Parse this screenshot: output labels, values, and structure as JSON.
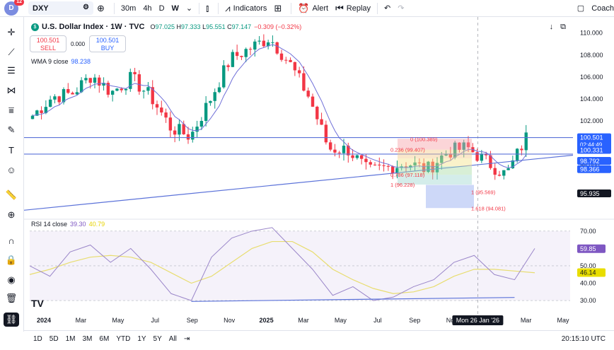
{
  "topbar": {
    "avatar_letter": "D",
    "avatar_badge": "12",
    "symbol": "DXY",
    "intervals": [
      "30m",
      "4h",
      "D",
      "W"
    ],
    "active_interval": "W",
    "indicators_label": "Indicators",
    "alert_label": "Alert",
    "replay_label": "Replay",
    "coach_label": "Coach"
  },
  "legend": {
    "title": "U.S. Dollar Index · 1W · TVC",
    "open_label": "O",
    "open": "97.025",
    "high_label": "H",
    "high": "97.333",
    "low_label": "L",
    "low": "95.551",
    "close_label": "C",
    "close": "97.147",
    "change": "−0.309 (−0.32%)",
    "sell_price": "100.501",
    "sell_label": "SELL",
    "spread": "0.000",
    "buy_price": "100.501",
    "buy_label": "BUY",
    "wma_label": "WMA 9 close",
    "wma_value": "98.238",
    "rsi_label": "RSI 14 close",
    "rsi_value": "39.30",
    "rsi_ma_value": "40.79"
  },
  "bottombar": {
    "ranges": [
      "1D",
      "5D",
      "1M",
      "3M",
      "6M",
      "YTD",
      "1Y",
      "5Y",
      "All"
    ],
    "clock": "20:15:10 UTC"
  },
  "colors": {
    "up": "#089981",
    "down": "#f23645",
    "wma": "#6f6fd8",
    "rsi": "#9a86c9",
    "rsi_ma": "#e8dd70",
    "trend": "#5b72d9",
    "price_tag": "#2962ff"
  },
  "chart_data": [
    {
      "type": "candlestick",
      "title": "U.S. Dollar Index · 1W · TVC",
      "y_axis_ticks": [
        98.0,
        100.0,
        102.0,
        104.0,
        106.0,
        108.0,
        110.0
      ],
      "ylim": [
        93.6,
        111.2
      ],
      "x_tick_labels": [
        "2024",
        "Mar",
        "May",
        "Jul",
        "Sep",
        "Nov",
        "2025",
        "Mar",
        "May",
        "Jul",
        "Sep",
        "Nov",
        "Jan",
        "Mar",
        "May"
      ],
      "crosshair_date": "Mon 26 Jan '26",
      "price_labels": [
        {
          "value": "100.501",
          "sub": "02:44:49"
        },
        {
          "value": "100.331"
        },
        {
          "value": "98.792"
        },
        {
          "value": "98.366"
        },
        {
          "value": "95.935"
        }
      ],
      "horizontal_levels": [
        100.5,
        99.0
      ],
      "fib_levels": [
        {
          "ratio": "0",
          "value": "100.389",
          "label": "0 (100.389)"
        },
        {
          "ratio": "0.236",
          "value": "99.407",
          "label": "0.236 (99.407)"
        },
        {
          "ratio": "0.786",
          "value": "97.118",
          "label": "0.786 (97.118)"
        },
        {
          "ratio": "1",
          "value": "96.228",
          "label": "1 (96.228)"
        },
        {
          "ratio": "1",
          "value": "95.569",
          "label": "1 (95.569)"
        },
        {
          "ratio": "1.618",
          "value": "94.081",
          "label": "1.618 (94.081)"
        }
      ],
      "weekly_close_path": [
        {
          "x": "2024-01",
          "y": 102.5
        },
        {
          "x": "2024-02",
          "y": 104.2
        },
        {
          "x": "2024-03",
          "y": 104.5
        },
        {
          "x": "2024-04",
          "y": 106.2
        },
        {
          "x": "2024-05",
          "y": 104.6
        },
        {
          "x": "2024-06",
          "y": 105.9
        },
        {
          "x": "2024-07",
          "y": 104.2
        },
        {
          "x": "2024-08",
          "y": 101.4
        },
        {
          "x": "2024-09",
          "y": 100.6
        },
        {
          "x": "2024-10",
          "y": 104.0
        },
        {
          "x": "2024-11",
          "y": 107.6
        },
        {
          "x": "2024-12",
          "y": 108.6
        },
        {
          "x": "2025-01",
          "y": 109.6
        },
        {
          "x": "2025-02",
          "y": 107.3
        },
        {
          "x": "2025-03",
          "y": 104.2
        },
        {
          "x": "2025-04",
          "y": 99.5
        },
        {
          "x": "2025-05",
          "y": 99.4
        },
        {
          "x": "2025-06",
          "y": 97.4
        },
        {
          "x": "2025-07",
          "y": 97.8
        },
        {
          "x": "2025-08",
          "y": 98.2
        },
        {
          "x": "2025-09",
          "y": 97.6
        },
        {
          "x": "2025-10",
          "y": 99.2
        },
        {
          "x": "2025-11",
          "y": 99.6
        },
        {
          "x": "2025-12",
          "y": 98.3
        },
        {
          "x": "2026-01",
          "y": 97.1
        },
        {
          "x": "2026-02",
          "y": 100.5
        }
      ]
    },
    {
      "type": "line",
      "title": "RSI 14 close",
      "y_axis_ticks": [
        30.0,
        40.0,
        50.0,
        70.0
      ],
      "ylim": [
        28,
        74
      ],
      "price_labels": [
        {
          "value": "59.85"
        },
        {
          "value": "46.14"
        }
      ],
      "series": [
        {
          "name": "RSI 14 close",
          "values": [
            50,
            44,
            58,
            62,
            52,
            60,
            48,
            34,
            30,
            55,
            66,
            70,
            72,
            60,
            48,
            33,
            38,
            30,
            32,
            38,
            42,
            52,
            56,
            45,
            42,
            60
          ]
        },
        {
          "name": "RSI MA",
          "values": [
            45,
            48,
            52,
            55,
            56,
            55,
            52,
            46,
            40,
            44,
            52,
            60,
            64,
            64,
            58,
            48,
            42,
            37,
            34,
            35,
            38,
            44,
            48,
            48,
            47,
            46
          ]
        }
      ]
    }
  ]
}
